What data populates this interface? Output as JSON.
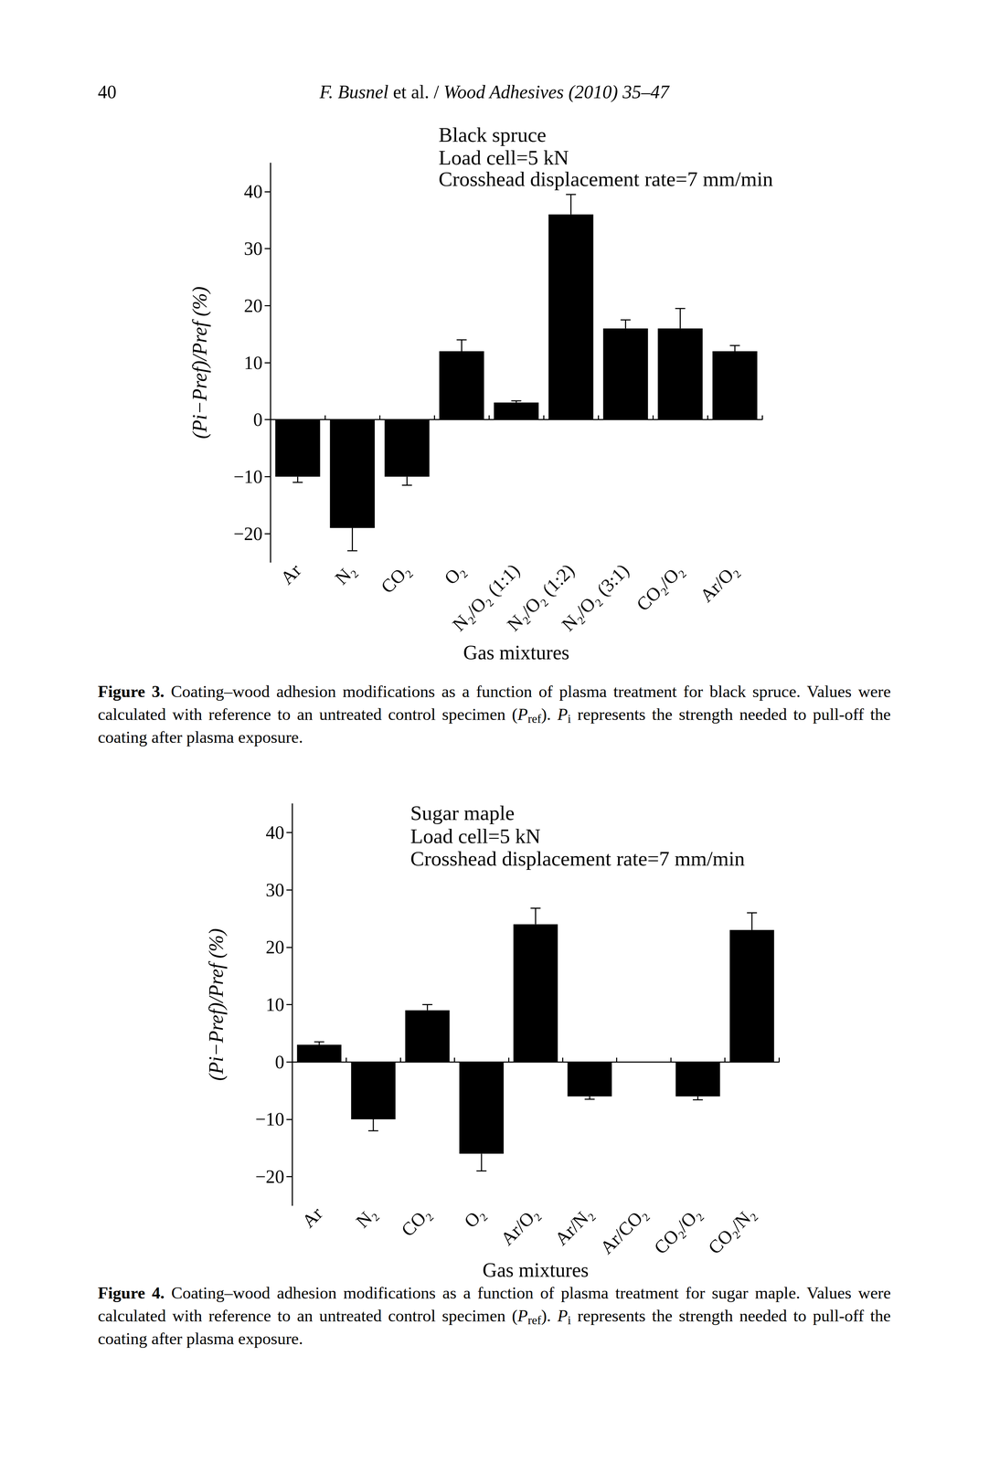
{
  "page": {
    "page_number": "40",
    "running_head": [
      {
        "italic": "F. Busnel"
      },
      " et al. / ",
      {
        "italic": "Wood Adhesives (2010) 35–47"
      }
    ]
  },
  "chart_data": [
    {
      "type": "bar",
      "annotations": [
        "Black spruce",
        "Load cell=5 kN",
        "Crosshead displacement rate=7 mm/min"
      ],
      "xlabel": "Gas mixtures",
      "ylabel": "(Pi−Pref)/Pref (%)",
      "categories": [
        "Ar",
        "N₂",
        "CO₂",
        "O₂",
        "N₂/O₂ (1:1)",
        "N₂/O₂ (1:2)",
        "N₂/O₂ (3:1)",
        "CO₂/O₂",
        "Ar/O₂"
      ],
      "values": [
        -10,
        -19,
        -10,
        12,
        3,
        36,
        16,
        16,
        12
      ],
      "errors": [
        1,
        4,
        1.5,
        2,
        0.3,
        3.5,
        1.5,
        3.5,
        1
      ],
      "color": "#000000",
      "ylim": [
        -25,
        45
      ],
      "yticks": [
        -20,
        -10,
        0,
        10,
        20,
        30,
        40
      ],
      "grid": false
    },
    {
      "type": "bar",
      "annotations": [
        "Sugar maple",
        "Load cell=5 kN",
        "Crosshead displacement rate=7 mm/min"
      ],
      "xlabel": "Gas mixtures",
      "ylabel": "(Pi−Pref)/Pref (%)",
      "categories": [
        "Ar",
        "N₂",
        "CO₂",
        "O₂",
        "Ar/O₂",
        "Ar/N₂",
        "Ar/CO₂",
        "CO₂/O₂",
        "CO₂/N₂"
      ],
      "values": [
        3,
        -10,
        9,
        -16,
        24,
        -6,
        null,
        -6,
        23
      ],
      "errors": [
        0.5,
        2,
        1,
        3,
        2.8,
        0.5,
        null,
        0.6,
        3
      ],
      "color": "#000000",
      "ylim": [
        -25,
        45
      ],
      "yticks": [
        -20,
        -10,
        0,
        10,
        20,
        30,
        40
      ],
      "grid": false
    }
  ],
  "captions": [
    {
      "label": "Figure 3.",
      "text": [
        "Coating–wood adhesion modifications as a function of plasma treatment for black spruce. Values were calculated with reference to an untreated control specimen (",
        {
          "italic": "P",
          "sub": "ref"
        },
        "). ",
        {
          "italic": "P",
          "sub": "i"
        },
        " represents the strength needed to pull-off the coating after plasma exposure."
      ]
    },
    {
      "label": "Figure 4.",
      "text": [
        "Coating–wood adhesion modifications as a function of plasma treatment for sugar maple. Values were calculated with reference to an untreated control specimen (",
        {
          "italic": "P",
          "sub": "ref"
        },
        "). ",
        {
          "italic": "P",
          "sub": "i"
        },
        " represents the strength needed to pull-off the coating after plasma exposure."
      ]
    }
  ]
}
